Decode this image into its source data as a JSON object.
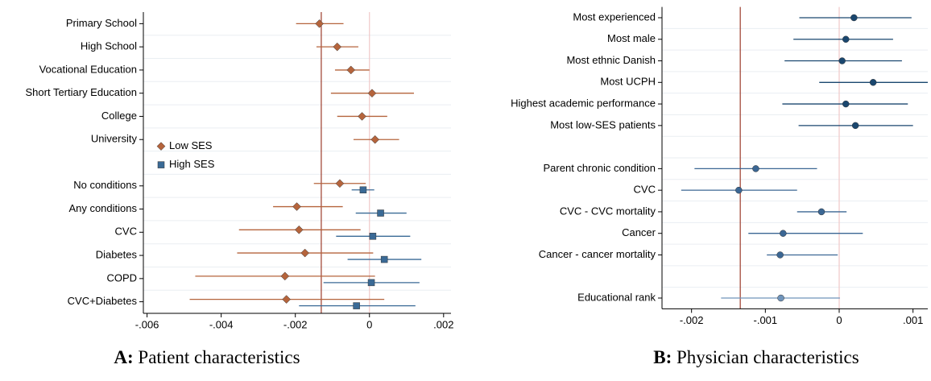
{
  "chart_data": [
    {
      "type": "dot",
      "caption_label": "A:",
      "caption": "Patient characteristics",
      "categories": [
        "Primary School",
        "High School",
        "Vocational Education",
        "Short Tertiary Education",
        "College",
        "University",
        null,
        "No conditions",
        "Any conditions",
        "CVC",
        "Diabetes",
        "COPD",
        "CVC+Diabetes"
      ],
      "series": [
        {
          "name": "Low SES",
          "color": "#b5643c",
          "marker": "diamond",
          "values": [
            -0.00135,
            -0.00087,
            -0.0005,
            7e-05,
            -0.0002,
            0.00015,
            null,
            -0.0008,
            -0.00196,
            -0.0019,
            -0.00174,
            -0.00228,
            -0.00224
          ],
          "lower": [
            -0.00198,
            -0.00143,
            -0.00093,
            -0.00104,
            -0.00087,
            -0.00043,
            null,
            -0.0015,
            -0.0026,
            -0.00352,
            -0.00357,
            -0.0047,
            -0.00485
          ],
          "upper": [
            -0.0007,
            -0.0003,
            0.0,
            0.0012,
            0.00048,
            0.0008,
            null,
            -0.0001,
            -0.00072,
            -0.00024,
            0.0001,
            0.00015,
            0.0004
          ]
        },
        {
          "name": "High SES",
          "color": "#3a6a96",
          "marker": "square",
          "values": [
            null,
            null,
            null,
            null,
            null,
            null,
            null,
            -0.00017,
            0.0003,
            9e-05,
            0.0004,
            5e-05,
            -0.00035
          ],
          "lower": [
            null,
            null,
            null,
            null,
            null,
            null,
            null,
            -0.00048,
            -0.00037,
            -0.0009,
            -0.00059,
            -0.00124,
            -0.0019
          ],
          "upper": [
            null,
            null,
            null,
            null,
            null,
            null,
            null,
            0.00013,
            0.001,
            0.0011,
            0.0014,
            0.00135,
            0.00124
          ]
        }
      ],
      "xlim": [
        -0.0061,
        0.0022
      ],
      "xticks": [
        {
          "value": -0.006,
          "label": "-.006"
        },
        {
          "value": -0.004,
          "label": "-.004"
        },
        {
          "value": -0.002,
          "label": "-.002"
        },
        0,
        {
          "value": 0.002,
          "label": ".002"
        }
      ],
      "reflines": [
        {
          "value": -0.0013,
          "color": "#9b3a2a"
        },
        {
          "value": 0,
          "color": "#f0c8c8"
        }
      ],
      "legend": "left"
    },
    {
      "type": "dot",
      "caption_label": "B:",
      "caption": "Physician characteristics",
      "categories": [
        "Most experienced",
        "Most male",
        "Most ethnic Danish",
        "Most UCPH",
        "Highest academic performance",
        "Most low-SES patients",
        null,
        "Parent chronic condition",
        "CVC",
        "CVC - CVC mortality",
        "Cancer",
        "Cancer - cancer mortality",
        null,
        "Educational rank"
      ],
      "series": [
        {
          "marker": "circle",
          "colors": [
            "#1a476f",
            "#1a476f",
            "#1a476f",
            "#1a476f",
            "#1a476f",
            "#1a476f",
            null,
            "#3b6794",
            "#3b6794",
            "#3b6794",
            "#3b6794",
            "#3b6794",
            null,
            "#6f93ba"
          ],
          "values": [
            0.0002,
            9e-05,
            4e-05,
            0.00046,
            9e-05,
            0.00022,
            null,
            -0.00113,
            -0.00136,
            -0.00024,
            -0.00076,
            -0.0008,
            null,
            -0.00079
          ],
          "lower": [
            -0.00054,
            -0.00062,
            -0.00074,
            -0.00027,
            -0.00077,
            -0.00055,
            null,
            -0.00196,
            -0.00214,
            -0.00057,
            -0.00123,
            -0.00098,
            null,
            -0.0016
          ],
          "upper": [
            0.00098,
            0.00073,
            0.00085,
            0.0012,
            0.00093,
            0.001,
            null,
            -0.0003,
            -0.00057,
            0.0001,
            0.00032,
            -2e-05,
            null,
            1e-05
          ]
        }
      ],
      "xlim": [
        -0.0024,
        0.0012
      ],
      "xticks": [
        {
          "value": -0.002,
          "label": "-.002"
        },
        {
          "value": -0.001,
          "label": "-.001"
        },
        0,
        {
          "value": 0.001,
          "label": ".001"
        }
      ],
      "reflines": [
        {
          "value": -0.00134,
          "color": "#9b3a2a"
        },
        {
          "value": 0,
          "color": "#f0c8c8"
        }
      ]
    }
  ]
}
